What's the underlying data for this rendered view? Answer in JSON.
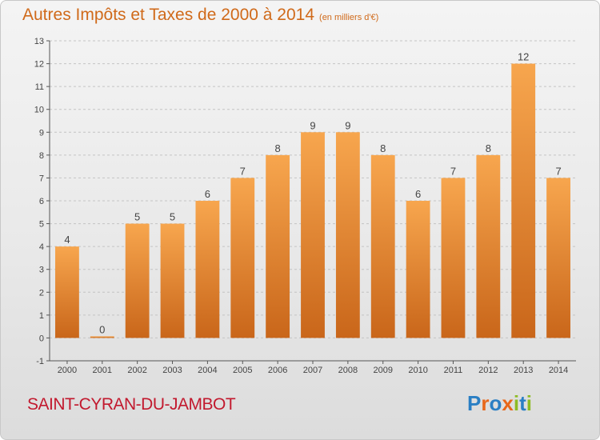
{
  "title": {
    "main": "Autres Impôts et Taxes de 2000 à 2014",
    "unit": "(en milliers d'€)"
  },
  "commune": "SAINT-CYRAN-DU-JAMBOT",
  "logo": {
    "text": "Proxiti",
    "letters": [
      {
        "char": "P",
        "color": "#2a7fc4"
      },
      {
        "char": "r",
        "color": "#e8671a"
      },
      {
        "char": "o",
        "color": "#2a7fc4"
      },
      {
        "char": "x",
        "color": "#e8671a"
      },
      {
        "char": "i",
        "color": "#8dbb23"
      },
      {
        "char": "t",
        "color": "#2a7fc4"
      },
      {
        "char": "i",
        "color": "#8dbb23"
      }
    ]
  },
  "colors": {
    "bar_top": "#f7a64e",
    "bar_bottom": "#c9661a",
    "title": "#d06a1a",
    "commune": "#c2192e"
  },
  "chart_data": {
    "type": "bar",
    "categories": [
      "2000",
      "2001",
      "2002",
      "2003",
      "2004",
      "2005",
      "2006",
      "2007",
      "2008",
      "2009",
      "2010",
      "2011",
      "2012",
      "2013",
      "2014"
    ],
    "values": [
      4,
      0,
      5,
      5,
      6,
      7,
      8,
      9,
      9,
      8,
      6,
      7,
      8,
      12,
      7
    ],
    "ylim": [
      -1,
      13
    ],
    "yticks": [
      -1,
      0,
      1,
      2,
      3,
      4,
      5,
      6,
      7,
      8,
      9,
      10,
      11,
      12,
      13
    ],
    "grid": "horizontal dashed",
    "xlabel": "",
    "ylabel": ""
  }
}
